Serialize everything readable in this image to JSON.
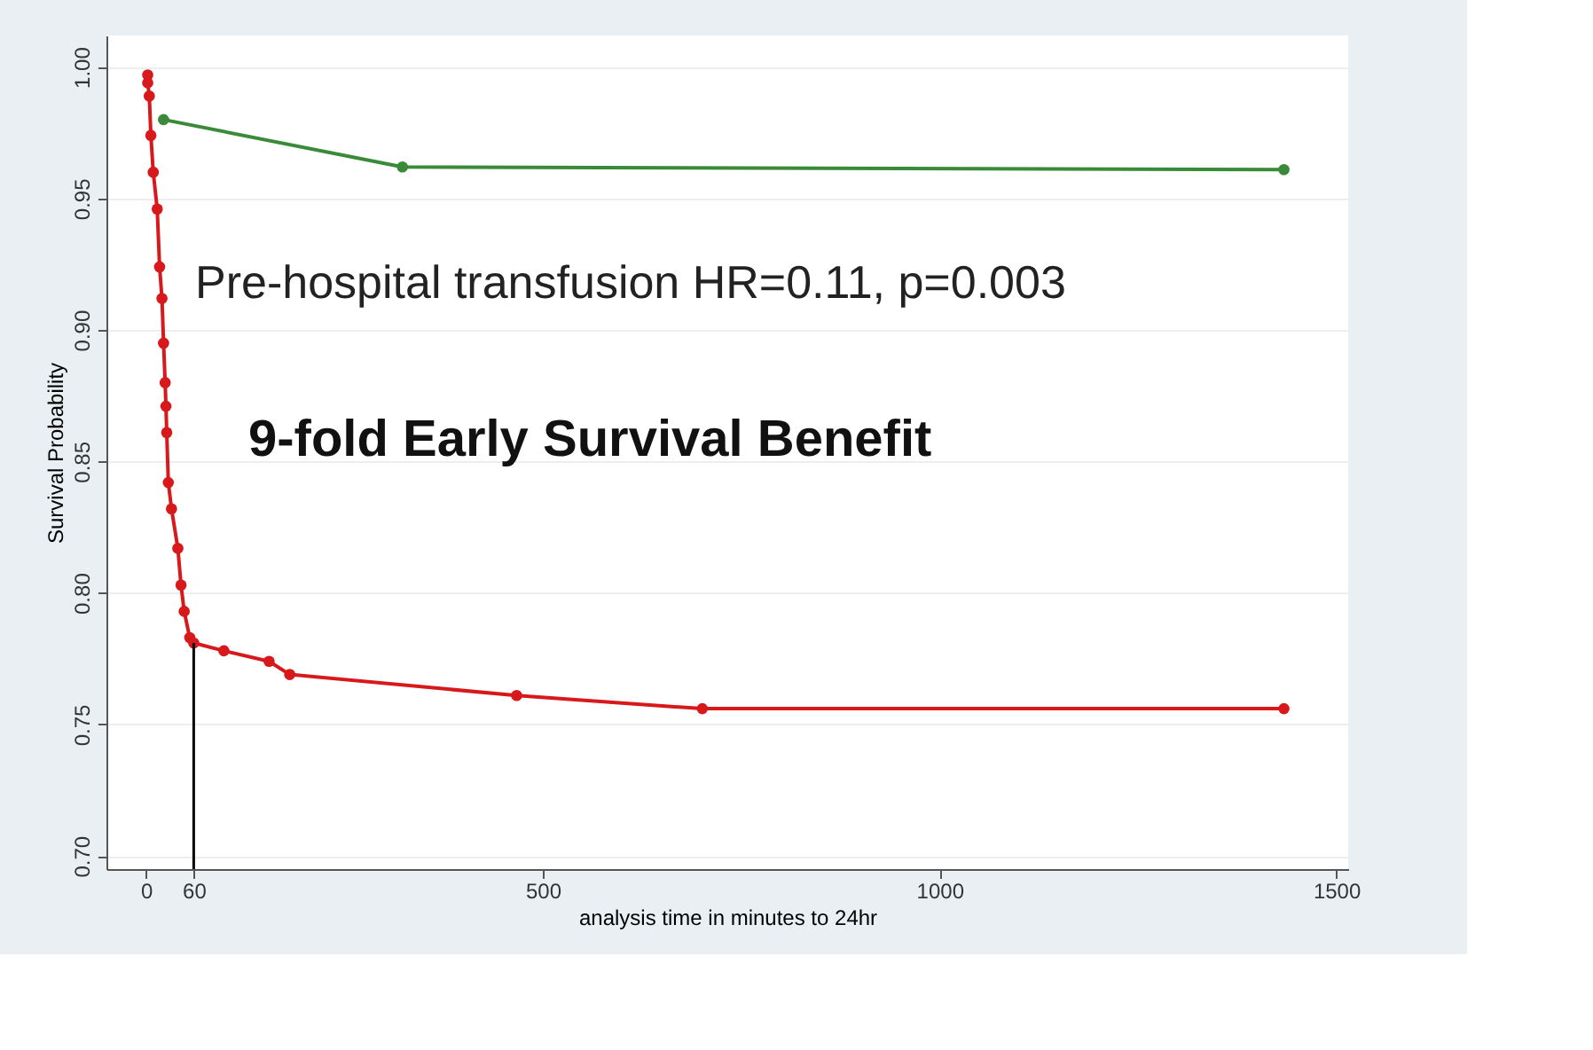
{
  "chart_data": {
    "type": "line",
    "xlabel": "analysis time in minutes to 24hr",
    "ylabel": "Survival Probability",
    "xlim": [
      -50,
      1515
    ],
    "ylim": [
      0.695,
      1.012
    ],
    "xticks": [
      0,
      60,
      500,
      1000,
      1500
    ],
    "yticks": [
      {
        "value": 0.7,
        "label": "0.70"
      },
      {
        "value": 0.75,
        "label": "0.75"
      },
      {
        "value": 0.8,
        "label": "0.80"
      },
      {
        "value": 0.85,
        "label": "0.85"
      },
      {
        "value": 0.9,
        "label": "0.90"
      },
      {
        "value": 0.95,
        "label": "0.95"
      },
      {
        "value": 1.0,
        "label": "1.00"
      }
    ],
    "grid": "y",
    "marker": "circle",
    "line_style": "solid",
    "series": [
      {
        "color": "#3a8a3a",
        "x": [
          22,
          323,
          1434
        ],
        "values": [
          0.98,
          0.962,
          0.961
        ]
      },
      {
        "color": "#d7191c",
        "x": [
          2,
          2,
          4,
          6,
          9,
          14,
          17,
          20,
          22,
          24,
          25,
          26,
          28,
          32,
          40,
          44,
          48,
          55,
          60,
          98,
          155,
          181,
          467,
          701,
          1434
        ],
        "values": [
          0.997,
          0.994,
          0.989,
          0.974,
          0.96,
          0.946,
          0.924,
          0.912,
          0.895,
          0.88,
          0.871,
          0.861,
          0.842,
          0.832,
          0.817,
          0.803,
          0.793,
          0.783,
          0.781,
          0.778,
          0.774,
          0.769,
          0.761,
          0.756,
          0.756
        ]
      }
    ],
    "ref_lines": [
      {
        "axis": "x",
        "value": 60,
        "color": "#000000",
        "line_style": "solid"
      }
    ],
    "annotations": [
      "Pre-hospital transfusion HR=0.11, p=0.003",
      "9-fold Early Survival Benefit"
    ]
  }
}
